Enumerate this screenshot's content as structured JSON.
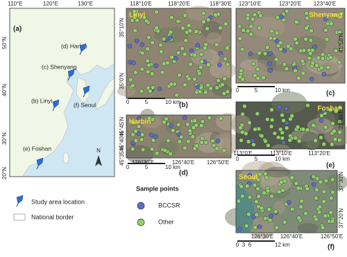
{
  "panel_a": {
    "label": "(a)",
    "lon_ticks": [
      "110°E",
      "120°E",
      "130°E"
    ],
    "lat_ticks": [
      "50°N",
      "40°N",
      "30°N",
      "20°N"
    ],
    "sites": [
      "(d) Harbin",
      "(c) Shenyang",
      "(b) Linyi",
      "(f) Seoul",
      "(e) Foshan"
    ],
    "north": "N"
  },
  "panels": [
    {
      "label": "(b)",
      "name": "Linyi",
      "x_ticks": [
        "118°10'E",
        "118°20'E",
        "118°30'E"
      ],
      "y_ticks": [
        "35°10'N",
        "35°0'N"
      ],
      "scale": [
        "0",
        "5",
        "10 km"
      ]
    },
    {
      "label": "(c)",
      "name": "Shenyang",
      "x_ticks": [
        "123°10'E",
        "123°20'E",
        "123°40'E"
      ],
      "y_ticks": [
        "41°50'N"
      ],
      "scale": [
        "0",
        "5",
        "10 km"
      ]
    },
    {
      "label": "(d)",
      "name": "Harbin",
      "x_ticks": [
        "126°30'E",
        "126°40'E",
        "126°50'E"
      ],
      "y_ticks": [
        "45°45'N",
        "45°40'N",
        "45°35'N"
      ],
      "scale": [
        "0",
        "5",
        "10 km"
      ]
    },
    {
      "label": "(e)",
      "name": "Foshan",
      "x_ticks": [
        "113°0'E",
        "113°10'E",
        "113°20'E"
      ],
      "y_ticks": [
        "22°40'N"
      ],
      "scale": [
        "0",
        "5",
        "10 km"
      ]
    },
    {
      "label": "(f)",
      "name": "Seoul",
      "x_ticks": [
        "126°30'E",
        "126°40'E",
        "126°50'E"
      ],
      "y_ticks": [
        "37°30'N",
        "37°20'N"
      ],
      "scale": [
        "0",
        "3",
        "6",
        "12 km"
      ]
    }
  ],
  "legend": {
    "study_area": "Study area location",
    "border": "National border",
    "sample_title": "Sample points",
    "bccsr": "BCCSR",
    "other": "Other"
  }
}
